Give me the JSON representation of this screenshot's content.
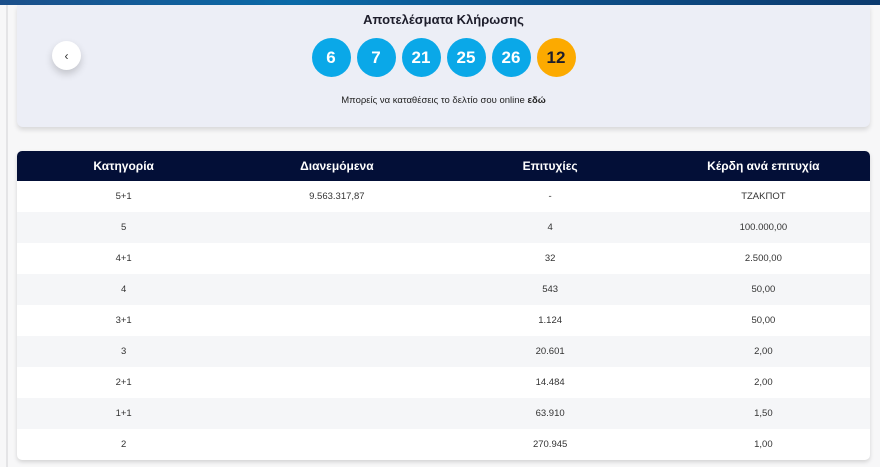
{
  "header": {
    "title": "Αποτελέσματα Κλήρωσης",
    "numbers": [
      "6",
      "7",
      "21",
      "25",
      "26"
    ],
    "bonus": "12",
    "note_text": "Μπορείς να καταθέσεις το δελτίο σου online ",
    "note_link": "εδώ",
    "back_icon": "chevron-left-icon"
  },
  "colors": {
    "ball": "#0aa8e8",
    "bonus": "#fcaa00",
    "table_header": "#030f37"
  },
  "table": {
    "columns": [
      "Κατηγορία",
      "Διανεμόμενα",
      "Επιτυχίες",
      "Κέρδη ανά επιτυχία"
    ],
    "rows": [
      [
        "5+1",
        "9.563.317,87",
        "-",
        "ΤΖΑΚΠΟΤ"
      ],
      [
        "5",
        "",
        "4",
        "100.000,00"
      ],
      [
        "4+1",
        "",
        "32",
        "2.500,00"
      ],
      [
        "4",
        "",
        "543",
        "50,00"
      ],
      [
        "3+1",
        "",
        "1.124",
        "50,00"
      ],
      [
        "3",
        "",
        "20.601",
        "2,00"
      ],
      [
        "2+1",
        "",
        "14.484",
        "2,00"
      ],
      [
        "1+1",
        "",
        "63.910",
        "1,50"
      ],
      [
        "2",
        "",
        "270.945",
        "1,00"
      ]
    ]
  }
}
